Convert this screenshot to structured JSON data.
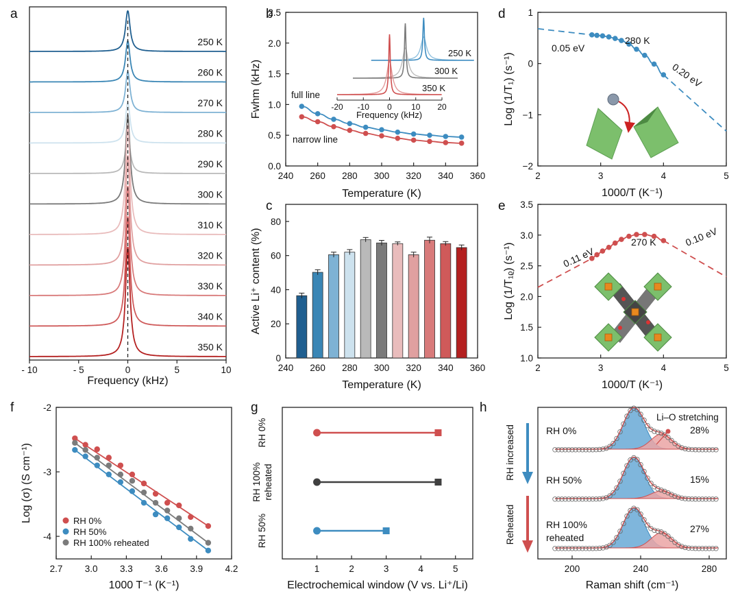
{
  "colors": {
    "temp_palette": [
      "#1f5f90",
      "#3a86b5",
      "#7eb2d4",
      "#cde2ee",
      "#b9b9b9",
      "#7a7a7a",
      "#e9bcbc",
      "#e0a0a0",
      "#d87a7a",
      "#cf5a5a",
      "#c94040",
      "#b42020"
    ],
    "blue": "#3d8cc0",
    "red": "#cf4f4f",
    "grey": "#7b7b7b",
    "dark": "#404040"
  },
  "panels": {
    "a": {
      "label": "a"
    },
    "b": {
      "label": "b"
    },
    "c": {
      "label": "c"
    },
    "d": {
      "label": "d"
    },
    "e": {
      "label": "e"
    },
    "f": {
      "label": "f"
    },
    "g": {
      "label": "g"
    },
    "h": {
      "label": "h"
    }
  },
  "chart_data": [
    {
      "id": "a",
      "type": "line",
      "xlabel": "Frequency (kHz)",
      "xlim": [
        -10,
        10
      ],
      "xticks": [
        "- 10",
        "- 5",
        "0",
        "5",
        "10"
      ],
      "series_labels": [
        "250 K",
        "260 K",
        "270 K",
        "280 K",
        "290 K",
        "300 K",
        "310 K",
        "320 K",
        "330 K",
        "340 K",
        "350 K"
      ],
      "peak_center": 0,
      "note": "stacked 7Li NMR spectra, one Lorentzian-like peak per temperature centred at 0 kHz"
    },
    {
      "id": "b",
      "type": "line",
      "xlabel": "Temperature (K)",
      "ylabel": "Fwhm (kHz)",
      "xlim": [
        240,
        360
      ],
      "ylim": [
        0,
        2.5
      ],
      "xticks": [
        "240",
        "260",
        "280",
        "300",
        "320",
        "340",
        "360"
      ],
      "yticks": [
        "0.0",
        "0.5",
        "1.0",
        "1.5",
        "2.0",
        "2.5"
      ],
      "x": [
        250,
        260,
        270,
        280,
        290,
        300,
        310,
        320,
        330,
        340,
        350
      ],
      "series": [
        {
          "name": "full line",
          "values": [
            0.97,
            0.85,
            0.76,
            0.69,
            0.63,
            0.59,
            0.55,
            0.52,
            0.5,
            0.48,
            0.47
          ]
        },
        {
          "name": "narrow line",
          "values": [
            0.8,
            0.72,
            0.64,
            0.58,
            0.53,
            0.49,
            0.45,
            0.42,
            0.4,
            0.38,
            0.37
          ]
        }
      ],
      "inset": {
        "xlabel": "Frequency (kHz)",
        "xticks": [
          "-20",
          "-10",
          "0",
          "10",
          "20"
        ],
        "labels": [
          "250 K",
          "300 K",
          "350 K"
        ]
      }
    },
    {
      "id": "c",
      "type": "bar",
      "xlabel": "Temperature (K)",
      "ylabel": "Active Li⁺ content (%)",
      "xlim": [
        240,
        360
      ],
      "ylim": [
        0,
        90
      ],
      "xticks": [
        "240",
        "260",
        "280",
        "300",
        "320",
        "340",
        "360"
      ],
      "yticks": [
        "0",
        "20",
        "40",
        "60",
        "80"
      ],
      "categories": [
        250,
        260,
        270,
        280,
        290,
        300,
        310,
        320,
        330,
        340,
        350
      ],
      "values": [
        36.5,
        50.2,
        60.5,
        62.0,
        69.3,
        67.4,
        67.0,
        60.5,
        69.0,
        67.0,
        64.7
      ],
      "errors": [
        1.5,
        1.5,
        1.5,
        1.5,
        1.3,
        1.5,
        1.0,
        1.5,
        1.8,
        1.2,
        1.5
      ]
    },
    {
      "id": "d",
      "type": "line",
      "xlabel": "1000/T (K⁻¹)",
      "ylabel": "Log (1/T₁) (s⁻¹)",
      "xlim": [
        2,
        5
      ],
      "ylim": [
        -2,
        1
      ],
      "xticks": [
        "2",
        "3",
        "4",
        "5"
      ],
      "yticks": [
        "−2",
        "−1",
        "0",
        "1"
      ],
      "points": {
        "x": [
          2.86,
          2.94,
          3.03,
          3.13,
          3.23,
          3.33,
          3.45,
          3.57,
          3.7,
          3.85,
          4.0
        ],
        "y": [
          0.56,
          0.55,
          0.54,
          0.52,
          0.49,
          0.45,
          0.38,
          0.28,
          0.16,
          -0.01,
          -0.22
        ]
      },
      "fit_low": {
        "x": [
          2.0,
          2.86
        ],
        "y": [
          0.68,
          0.56
        ]
      },
      "fit_high": {
        "x": [
          4.0,
          5.0
        ],
        "y": [
          -0.22,
          -1.32
        ]
      },
      "annotations": [
        "0.05 eV",
        "280 K",
        "0.20 eV"
      ]
    },
    {
      "id": "e",
      "type": "line",
      "xlabel": "1000/T (K⁻¹)",
      "ylabel": "Log (1/T₁ᵨ) (s⁻¹)",
      "xlim": [
        2,
        5
      ],
      "ylim": [
        1.0,
        3.5
      ],
      "xticks": [
        "2",
        "3",
        "4",
        "5"
      ],
      "yticks": [
        "1.0",
        "1.5",
        "2.0",
        "2.5",
        "3.0",
        "3.5"
      ],
      "points": {
        "x": [
          2.86,
          2.94,
          3.03,
          3.13,
          3.23,
          3.33,
          3.45,
          3.57,
          3.7,
          3.85,
          4.0
        ],
        "y": [
          2.62,
          2.68,
          2.74,
          2.8,
          2.87,
          2.93,
          2.98,
          3.01,
          3.01,
          2.98,
          2.91
        ]
      },
      "fit_low": {
        "x": [
          2.0,
          2.86
        ],
        "y": [
          2.15,
          2.62
        ]
      },
      "fit_high": {
        "x": [
          4.0,
          5.0
        ],
        "y": [
          2.91,
          2.32
        ]
      },
      "annotations": [
        "0.11 eV",
        "270 K",
        "0.10 eV"
      ]
    },
    {
      "id": "f",
      "type": "scatter",
      "xlabel": "1000 T⁻¹ (K⁻¹)",
      "ylabel": "Log (σ) (S cm⁻¹)",
      "xlim": [
        2.7,
        4.2
      ],
      "ylim": [
        -4.35,
        -2.0
      ],
      "xticks": [
        "2.7",
        "3.0",
        "3.3",
        "3.6",
        "3.9",
        "4.2"
      ],
      "yticks": [
        "-2",
        "-3",
        "-4"
      ],
      "x": [
        2.86,
        2.95,
        3.05,
        3.15,
        3.25,
        3.35,
        3.45,
        3.55,
        3.65,
        3.75,
        3.85,
        4.0
      ],
      "series": [
        {
          "name": "RH 0%",
          "values": [
            -2.48,
            -2.58,
            -2.65,
            -2.78,
            -2.9,
            -3.04,
            -3.18,
            -3.34,
            -3.48,
            -3.52,
            -3.7,
            -3.84
          ]
        },
        {
          "name": "RH 50%",
          "values": [
            -2.66,
            -2.76,
            -2.9,
            -3.04,
            -3.16,
            -3.3,
            -3.48,
            -3.66,
            -3.72,
            -3.86,
            -4.04,
            -4.22
          ]
        },
        {
          "name": "RH 100% reheated",
          "values": [
            -2.55,
            -2.66,
            -2.78,
            -2.9,
            -3.04,
            -3.14,
            -3.32,
            -3.48,
            -3.6,
            -3.72,
            -3.88,
            -4.1
          ]
        }
      ],
      "legend": [
        "RH 0%",
        "RH 50%",
        "RH 100% reheated"
      ]
    },
    {
      "id": "g",
      "type": "bar",
      "xlabel": "Electrochemical window (V vs. Li⁺/Li)",
      "xlim": [
        0,
        5.5
      ],
      "xticks": [
        "1",
        "2",
        "3",
        "4",
        "5"
      ],
      "categories": [
        "RH 0%",
        "RH 100% reheated",
        "RH 50%"
      ],
      "category_labels": [
        [
          "RH 0%"
        ],
        [
          "RH 100%",
          "reheated"
        ],
        [
          "RH 50%"
        ]
      ],
      "ranges": [
        [
          1.0,
          4.5
        ],
        [
          1.0,
          4.5
        ],
        [
          1.0,
          3.0
        ]
      ]
    },
    {
      "id": "h",
      "type": "area",
      "xlabel": "Raman shift (cm⁻¹)",
      "xlim": [
        180,
        290
      ],
      "xticks": [
        "200",
        "240",
        "280"
      ],
      "side_labels": [
        "RH increased",
        "Reheated"
      ],
      "spectra": [
        {
          "label": "RH 0%",
          "percent": "28%"
        },
        {
          "label": "RH 50%",
          "percent": "15%"
        },
        {
          "label": "RH 100%\nreheated",
          "label_lines": [
            "RH 100%",
            "reheated"
          ],
          "percent": "27%"
        }
      ],
      "annotation": "Li–O stretching"
    }
  ]
}
